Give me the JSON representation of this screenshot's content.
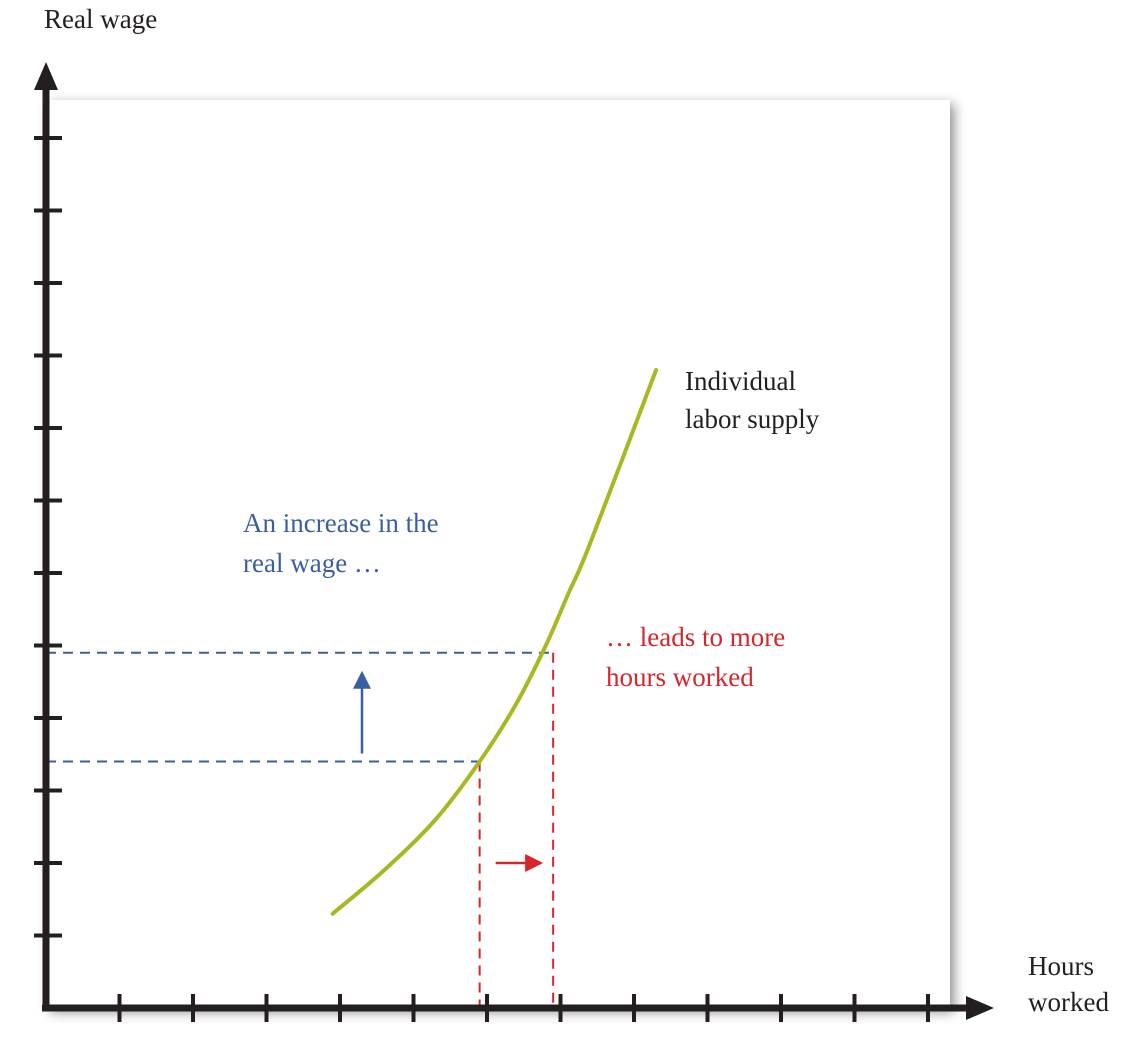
{
  "chart_data": {
    "type": "line",
    "title": "",
    "ylabel": "Real wage",
    "xlabel": [
      "Hours",
      "worked"
    ],
    "xlim": [
      0,
      12
    ],
    "ylim": [
      0,
      12
    ],
    "x_tick_count": 12,
    "y_tick_count": 12,
    "grid": false,
    "series": [
      {
        "name": [
          "Individual",
          "labor supply"
        ],
        "color": "#a8b820",
        "x": [
          3.9,
          4.6,
          5.3,
          5.9,
          6.4,
          6.8,
          7.1,
          7.4,
          8.3
        ],
        "y": [
          1.3,
          1.9,
          2.6,
          3.4,
          4.2,
          5.0,
          5.7,
          6.4,
          8.8
        ]
      }
    ],
    "points": [
      {
        "name": "initial",
        "x": 5.9,
        "y": 3.4
      },
      {
        "name": "new",
        "x": 6.9,
        "y": 4.9
      }
    ],
    "annotations": [
      {
        "name": "wage-increase",
        "lines": [
          "An increase in the",
          "real wage …"
        ],
        "color": "#3a5fa0"
      },
      {
        "name": "hours-increase",
        "lines": [
          "… leads to more",
          "hours worked"
        ],
        "color": "#d9252a"
      }
    ],
    "colors": {
      "axis": "#231f20",
      "wage_guides": "#3a5fa0",
      "hours_guides": "#d9252a",
      "plot_background": "#ffffff"
    }
  }
}
